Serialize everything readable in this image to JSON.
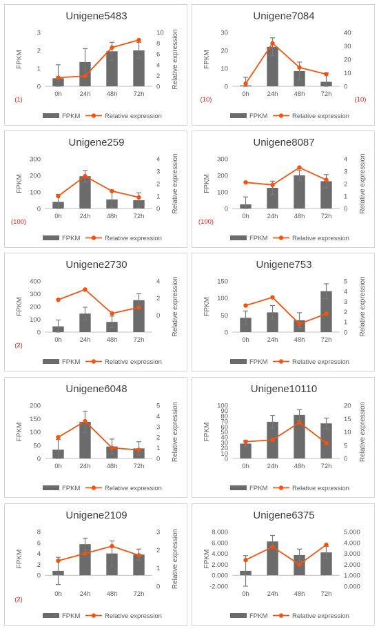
{
  "colors": {
    "bar": "#6b6b6b",
    "line": "#f0540f",
    "axis_text": "#595959",
    "neg_text": "#e02020",
    "border": "#d4d4d4"
  },
  "chart_data": [
    {
      "type": "bar+line",
      "title": "Unigene5483",
      "categories": [
        "0h",
        "24h",
        "48h",
        "72h"
      ],
      "ylabel": "FPKM",
      "y2label": "Relative expression",
      "note": "(1)",
      "ylim": [
        0,
        3
      ],
      "yticks": [
        "0",
        "1",
        "2",
        "3"
      ],
      "y2lim": [
        0,
        10
      ],
      "y2ticks": [
        "0",
        "2",
        "4",
        "6",
        "8",
        "10"
      ],
      "series": [
        {
          "name": "FPKM",
          "kind": "bar",
          "values": [
            0.45,
            1.35,
            1.95,
            2.0
          ],
          "errors": [
            0.75,
            0.75,
            0.5,
            0.45
          ]
        },
        {
          "name": "Relative expression",
          "kind": "line",
          "values": [
            1.6,
            1.9,
            7.2,
            8.6
          ],
          "errors": [
            0,
            0,
            0,
            0
          ]
        }
      ],
      "legend": "bottom"
    },
    {
      "type": "bar+line",
      "title": "Unigene7084",
      "categories": [
        "0h",
        "24h",
        "48h",
        "72h"
      ],
      "ylabel": "FPKM",
      "y2label": "",
      "note": "(10)",
      "note2": "(10)",
      "ylim": [
        0,
        30
      ],
      "yticks": [
        "0",
        "10",
        "20",
        "30"
      ],
      "y2lim": [
        0,
        40
      ],
      "y2ticks": [
        "0",
        "10",
        "20",
        "30",
        "40"
      ],
      "series": [
        {
          "name": "FPKM",
          "kind": "bar",
          "values": [
            0.5,
            22,
            8.5,
            2.5
          ],
          "errors": [
            4.5,
            5,
            5,
            5
          ]
        },
        {
          "name": "Relative expression",
          "kind": "line",
          "values": [
            2,
            32,
            14,
            9
          ],
          "errors": [
            0,
            0,
            0,
            0
          ]
        }
      ],
      "legend": "bottom"
    },
    {
      "type": "bar+line",
      "title": "Unigene259",
      "categories": [
        "0h",
        "24h",
        "48h",
        "72h"
      ],
      "ylabel": "FPKM",
      "y2label": "Relative expression",
      "note": "(100)",
      "ylim": [
        0,
        300
      ],
      "yticks": [
        "0",
        "100",
        "200",
        "300"
      ],
      "y2lim": [
        0,
        4
      ],
      "y2ticks": [
        "0",
        "1",
        "2",
        "3",
        "4"
      ],
      "series": [
        {
          "name": "FPKM",
          "kind": "bar",
          "values": [
            40,
            195,
            55,
            50
          ],
          "errors": [
            45,
            35,
            50,
            45
          ]
        },
        {
          "name": "Relative expression",
          "kind": "line",
          "values": [
            1.0,
            2.6,
            1.4,
            0.9
          ],
          "errors": [
            0,
            0,
            0,
            0
          ]
        }
      ],
      "legend": "bottom"
    },
    {
      "type": "bar+line",
      "title": "Unigene8087",
      "categories": [
        "0h",
        "24h",
        "48h",
        "72h"
      ],
      "ylabel": "FPKM",
      "y2label": "Relative expression",
      "note": "(100)",
      "ylim": [
        0,
        300
      ],
      "yticks": [
        "0",
        "100",
        "200",
        "300"
      ],
      "y2lim": [
        0,
        4
      ],
      "y2ticks": [
        "0",
        "1",
        "2",
        "3",
        "4"
      ],
      "series": [
        {
          "name": "FPKM",
          "kind": "bar",
          "values": [
            25,
            125,
            200,
            165
          ],
          "errors": [
            45,
            40,
            30,
            40
          ]
        },
        {
          "name": "Relative expression",
          "kind": "line",
          "values": [
            2.1,
            1.9,
            3.3,
            2.3
          ],
          "errors": [
            0,
            0,
            0,
            0
          ]
        }
      ],
      "legend": "bottom"
    },
    {
      "type": "bar+line",
      "title": "Unigene2730",
      "categories": [
        "0h",
        "24h",
        "48h",
        "72h"
      ],
      "ylabel": "FPKM",
      "y2label": "Relative expression",
      "note": "(2)",
      "ylim": [
        0,
        400
      ],
      "yticks": [
        "0",
        "100",
        "200",
        "300",
        "400"
      ],
      "y2lim": [
        -2,
        4
      ],
      "y2ticks": [
        "0",
        "2",
        "4"
      ],
      "series": [
        {
          "name": "FPKM",
          "kind": "bar",
          "values": [
            45,
            145,
            80,
            250
          ],
          "errors": [
            50,
            50,
            45,
            50
          ]
        },
        {
          "name": "Relative expression",
          "kind": "line",
          "values": [
            1.8,
            3.0,
            0.2,
            0.9
          ],
          "errors": [
            0,
            0,
            0,
            0
          ]
        }
      ],
      "legend": "bottom"
    },
    {
      "type": "bar+line",
      "title": "Unigene753",
      "categories": [
        "0h",
        "24h",
        "48h",
        "72h"
      ],
      "ylabel": "FPKM",
      "y2label": "Relative expression",
      "note": "",
      "ylim": [
        0,
        150
      ],
      "yticks": [
        "0",
        "50",
        "100",
        "150"
      ],
      "y2lim": [
        0,
        5
      ],
      "y2ticks": [
        "0",
        "1",
        "2",
        "3",
        "4",
        "5"
      ],
      "series": [
        {
          "name": "FPKM",
          "kind": "bar",
          "values": [
            42,
            58,
            35,
            120
          ],
          "errors": [
            20,
            20,
            22,
            22
          ]
        },
        {
          "name": "Relative expression",
          "kind": "line",
          "values": [
            2.6,
            3.4,
            0.8,
            1.8
          ],
          "errors": [
            0,
            0,
            0,
            0
          ]
        }
      ],
      "legend": "bottom"
    },
    {
      "type": "bar+line",
      "title": "Unigene6048",
      "categories": [
        "0h",
        "24h",
        "48h",
        "72h"
      ],
      "ylabel": "FPKM",
      "y2label": "Relative expression",
      "note": "",
      "ylim": [
        0,
        200
      ],
      "yticks": [
        "0",
        "50",
        "100",
        "150",
        "200"
      ],
      "y2lim": [
        0,
        5
      ],
      "y2ticks": [
        "0",
        "1",
        "2",
        "3",
        "4",
        "5"
      ],
      "series": [
        {
          "name": "FPKM",
          "kind": "bar",
          "values": [
            33,
            138,
            45,
            38
          ],
          "errors": [
            38,
            40,
            28,
            25
          ]
        },
        {
          "name": "Relative expression",
          "kind": "line",
          "values": [
            2.0,
            3.5,
            1.0,
            0.8
          ],
          "errors": [
            0,
            0,
            0,
            0
          ]
        }
      ],
      "legend": "bottom"
    },
    {
      "type": "bar+line",
      "title": "Unigene10110",
      "categories": [
        "0h",
        "24h",
        "48h",
        "72h"
      ],
      "ylabel": "FPKM",
      "y2label": "Relative expression",
      "note": "",
      "ylim": [
        0,
        100
      ],
      "yticks": [
        "0",
        "10",
        "20",
        "30",
        "40",
        "50",
        "60",
        "70",
        "80",
        "90",
        "100"
      ],
      "y2lim": [
        0,
        20
      ],
      "y2ticks": [
        "0",
        "5",
        "10",
        "15",
        "20"
      ],
      "series": [
        {
          "name": "FPKM",
          "kind": "bar",
          "values": [
            28,
            69,
            82,
            66
          ],
          "errors": [
            6,
            12,
            10,
            10
          ]
        },
        {
          "name": "Relative expression",
          "kind": "line",
          "values": [
            6.3,
            7.0,
            13.5,
            5.8
          ],
          "errors": [
            0,
            0,
            0,
            0
          ]
        }
      ],
      "legend": "bottom"
    },
    {
      "type": "bar+line",
      "title": "Unigene2109",
      "categories": [
        "0h",
        "24h",
        "48h",
        "72h"
      ],
      "ylabel": "FPKM",
      "y2label": "Relative expression",
      "note": "(2)",
      "ylim": [
        -2,
        8
      ],
      "yticks": [
        "0",
        "2",
        "4",
        "6",
        "8"
      ],
      "y2lim": [
        0,
        3
      ],
      "y2ticks": [
        "0",
        "1",
        "2",
        "3"
      ],
      "series": [
        {
          "name": "FPKM",
          "kind": "bar",
          "values": [
            0.8,
            5.7,
            4.0,
            3.8
          ],
          "errors": [
            2.5,
            1.1,
            2.3,
            1.0
          ]
        },
        {
          "name": "Relative expression",
          "kind": "line",
          "values": [
            1.4,
            1.8,
            2.2,
            1.7
          ],
          "errors": [
            0,
            0,
            0,
            0
          ]
        }
      ],
      "legend": "bottom"
    },
    {
      "type": "bar+line",
      "title": "Unigene6375",
      "categories": [
        "0h",
        "24h",
        "48h",
        "72h"
      ],
      "ylabel": "FPKM",
      "y2label": "",
      "note": "",
      "ylim": [
        -2,
        8
      ],
      "yticks": [
        "-2.000",
        "0.000",
        "2.000",
        "4.000",
        "6.000",
        "8.000"
      ],
      "y2lim": [
        0,
        5
      ],
      "y2ticks": [
        "0.000",
        "1.000",
        "2.000",
        "3.000",
        "4.000",
        "5.000"
      ],
      "series": [
        {
          "name": "FPKM",
          "kind": "bar",
          "values": [
            0.8,
            6.2,
            3.7,
            4.2
          ],
          "errors": [
            2.8,
            1.1,
            1.1,
            1.1
          ]
        },
        {
          "name": "Relative expression",
          "kind": "line",
          "values": [
            2.4,
            3.6,
            2.0,
            3.8
          ],
          "errors": [
            0,
            0,
            0,
            0
          ]
        }
      ],
      "legend": "bottom"
    }
  ]
}
